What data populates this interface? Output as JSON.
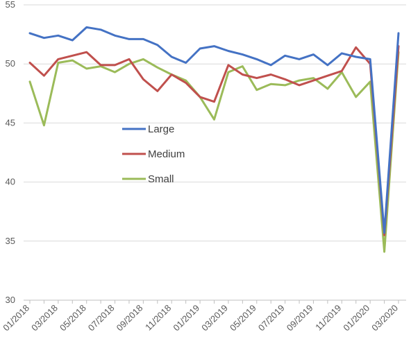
{
  "chart_data": {
    "type": "line",
    "title": "",
    "xlabel": "",
    "ylabel": "",
    "ylim": [
      30,
      55
    ],
    "yticks": [
      30,
      35,
      40,
      45,
      50,
      55
    ],
    "grid": "horizontal",
    "legend_position": "center-left",
    "x": [
      "01/2018",
      "02/2018",
      "03/2018",
      "04/2018",
      "05/2018",
      "06/2018",
      "07/2018",
      "08/2018",
      "09/2018",
      "10/2018",
      "11/2018",
      "12/2018",
      "01/2019",
      "02/2019",
      "03/2019",
      "04/2019",
      "05/2019",
      "06/2019",
      "07/2019",
      "08/2019",
      "09/2019",
      "10/2019",
      "11/2019",
      "12/2019",
      "01/2020",
      "02/2020",
      "03/2020"
    ],
    "xtick_labels": [
      "01/2018",
      "03/2018",
      "05/2018",
      "07/2018",
      "09/2018",
      "11/2018",
      "01/2019",
      "03/2019",
      "05/2019",
      "07/2019",
      "09/2019",
      "11/2019",
      "01/2020",
      "03/2020"
    ],
    "series": [
      {
        "name": "Large",
        "color": "#4472C4",
        "values": [
          52.6,
          52.2,
          52.4,
          52.0,
          53.1,
          52.9,
          52.4,
          52.1,
          52.1,
          51.6,
          50.6,
          50.1,
          51.3,
          51.5,
          51.1,
          50.8,
          50.4,
          49.9,
          50.7,
          50.4,
          50.8,
          49.9,
          50.9,
          50.6,
          50.4,
          35.7,
          52.6
        ]
      },
      {
        "name": "Medium",
        "color": "#C0504D",
        "values": [
          50.1,
          49.0,
          50.4,
          50.7,
          51.0,
          49.9,
          49.9,
          50.4,
          48.7,
          47.7,
          49.1,
          48.4,
          47.2,
          46.8,
          49.9,
          49.1,
          48.8,
          49.1,
          48.7,
          48.2,
          48.6,
          49.0,
          49.4,
          51.4,
          50.0,
          35.5,
          51.5
        ]
      },
      {
        "name": "Small",
        "color": "#9BBB59",
        "values": [
          48.5,
          44.8,
          50.1,
          50.3,
          49.6,
          49.8,
          49.3,
          50.0,
          50.4,
          49.7,
          49.1,
          48.6,
          47.2,
          45.3,
          49.3,
          49.8,
          47.8,
          48.3,
          48.2,
          48.6,
          48.8,
          47.9,
          49.3,
          47.2,
          48.5,
          34.1,
          51.0
        ]
      }
    ]
  }
}
